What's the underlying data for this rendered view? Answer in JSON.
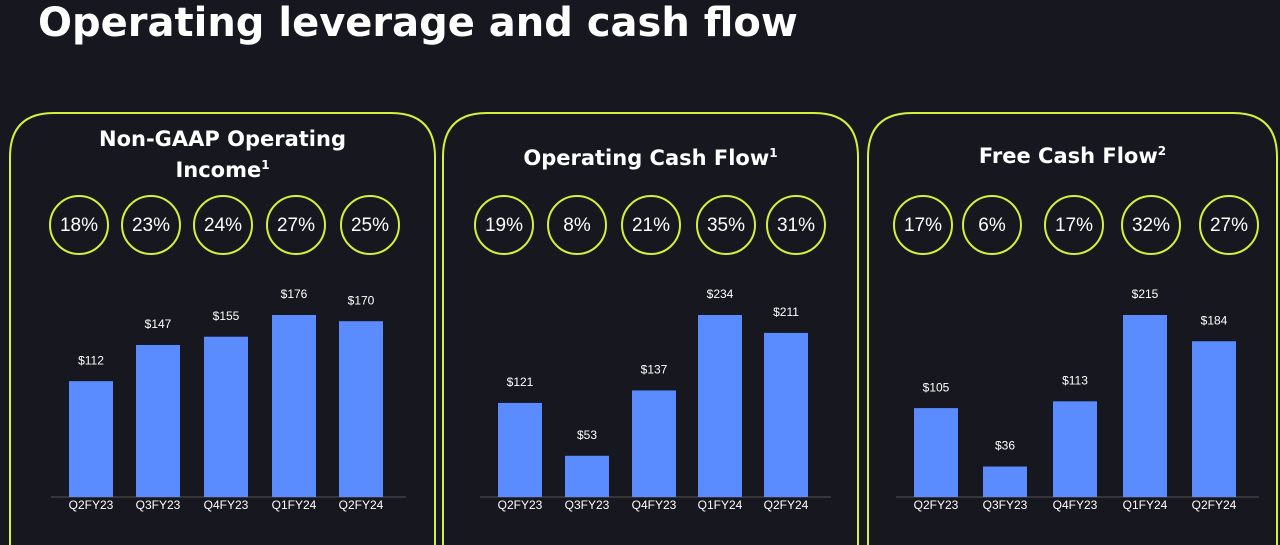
{
  "title": "Operating leverage and cash flow",
  "chart_data": [
    {
      "type": "bar",
      "title": "Non-GAAP Operating Income",
      "title_note": "1",
      "margin_labels": [
        "18%",
        "23%",
        "24%",
        "27%",
        "25%"
      ],
      "categories": [
        "Q2FY23",
        "Q3FY23",
        "Q4FY23",
        "Q1FY24",
        "Q2FY24"
      ],
      "values": [
        112,
        147,
        155,
        176,
        170
      ],
      "value_labels": [
        "$112",
        "$147",
        "$155",
        "$176",
        "$170"
      ],
      "color": "#5b8cff"
    },
    {
      "type": "bar",
      "title": "Operating Cash Flow",
      "title_note": "1",
      "margin_labels": [
        "19%",
        "8%",
        "21%",
        "35%",
        "31%"
      ],
      "categories": [
        "Q2FY23",
        "Q3FY23",
        "Q4FY23",
        "Q1FY24",
        "Q2FY24"
      ],
      "values": [
        121,
        53,
        137,
        234,
        211
      ],
      "value_labels": [
        "$121",
        "$53",
        "$137",
        "$234",
        "$211"
      ],
      "color": "#5b8cff"
    },
    {
      "type": "bar",
      "title": "Free Cash Flow",
      "title_note": "2",
      "margin_labels": [
        "17%",
        "6%",
        "17%",
        "32%",
        "27%"
      ],
      "categories": [
        "Q2FY23",
        "Q3FY23",
        "Q4FY23",
        "Q1FY24",
        "Q2FY24"
      ],
      "values": [
        105,
        36,
        113,
        215,
        184
      ],
      "value_labels": [
        "$105",
        "$36",
        "$113",
        "$215",
        "$184"
      ],
      "color": "#5b8cff"
    }
  ]
}
